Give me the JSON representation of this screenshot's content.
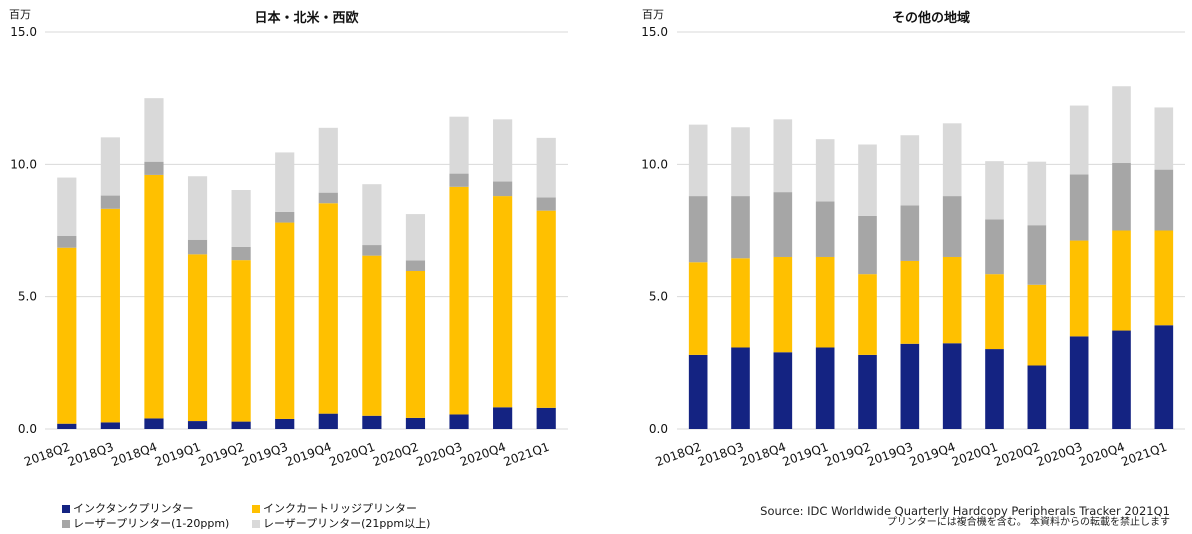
{
  "unit_label": "百万",
  "colors": {
    "ink_tank": "#142382",
    "ink_cartridge": "#FFC000",
    "laser_1_20ppm": "#A6A6A6",
    "laser_21ppm_plus": "#D9D9D9"
  },
  "legend": [
    {
      "label": "インクタンクプリンター",
      "color": "#142382"
    },
    {
      "label": "インクカートリッジプリンター",
      "color": "#FFC000"
    },
    {
      "label": "レーザープリンター(1-20ppm)",
      "color": "#A6A6A6"
    },
    {
      "label": "レーザープリンター(21ppm以上)",
      "color": "#D9D9D9"
    }
  ],
  "source": {
    "text": "Source: IDC Worldwide Quarterly Hardcopy Peripherals Tracker 2021Q1",
    "note": "プリンターには複合機を含む。 本資料からの転載を禁止します"
  },
  "chart_data": [
    {
      "type": "bar",
      "stacked": true,
      "title": "日本・北米・西欧",
      "ylabel": "百万",
      "ylim": [
        0,
        15
      ],
      "yticks": [
        0,
        5,
        10,
        15
      ],
      "grid": true,
      "categories": [
        "2018Q2",
        "2018Q3",
        "2018Q4",
        "2019Q1",
        "2019Q2",
        "2019Q3",
        "2019Q4",
        "2020Q1",
        "2020Q2",
        "2020Q3",
        "2020Q4",
        "2021Q1"
      ],
      "series": [
        {
          "name": "インクタンクプリンター",
          "color": "#142382",
          "values": [
            0.2,
            0.25,
            0.4,
            0.3,
            0.28,
            0.38,
            0.58,
            0.5,
            0.42,
            0.55,
            0.82,
            0.8
          ]
        },
        {
          "name": "インクカートリッジプリンター",
          "color": "#FFC000",
          "values": [
            6.65,
            8.07,
            9.2,
            6.3,
            6.1,
            7.42,
            7.95,
            6.05,
            5.55,
            8.6,
            7.98,
            7.45
          ]
        },
        {
          "name": "レーザープリンター(1-20ppm)",
          "color": "#A6A6A6",
          "values": [
            0.45,
            0.5,
            0.5,
            0.55,
            0.5,
            0.4,
            0.4,
            0.4,
            0.4,
            0.5,
            0.55,
            0.5
          ]
        },
        {
          "name": "レーザープリンター(21ppm以上)",
          "color": "#D9D9D9",
          "values": [
            2.2,
            2.2,
            2.4,
            2.4,
            2.15,
            2.25,
            2.45,
            2.3,
            1.75,
            2.15,
            2.35,
            2.25
          ]
        }
      ]
    },
    {
      "type": "bar",
      "stacked": true,
      "title": "その他の地域",
      "ylabel": "百万",
      "ylim": [
        0,
        15
      ],
      "yticks": [
        0,
        5,
        10,
        15
      ],
      "grid": true,
      "categories": [
        "2018Q2",
        "2018Q3",
        "2018Q4",
        "2019Q1",
        "2019Q2",
        "2019Q3",
        "2019Q4",
        "2020Q1",
        "2020Q2",
        "2020Q3",
        "2020Q4",
        "2021Q1"
      ],
      "series": [
        {
          "name": "インクタンクプリンター",
          "color": "#142382",
          "values": [
            2.8,
            3.08,
            2.9,
            3.08,
            2.8,
            3.22,
            3.24,
            3.02,
            2.4,
            3.5,
            3.72,
            3.92
          ]
        },
        {
          "name": "インクカートリッジプリンター",
          "color": "#FFC000",
          "values": [
            3.5,
            3.37,
            3.6,
            3.42,
            3.05,
            3.13,
            3.26,
            2.83,
            3.05,
            3.62,
            3.78,
            3.58
          ]
        },
        {
          "name": "レーザープリンター(1-20ppm)",
          "color": "#A6A6A6",
          "values": [
            2.5,
            2.35,
            2.45,
            2.1,
            2.2,
            2.1,
            2.3,
            2.07,
            2.25,
            2.5,
            2.55,
            2.3
          ]
        },
        {
          "name": "レーザープリンター(21ppm以上)",
          "color": "#D9D9D9",
          "values": [
            2.7,
            2.6,
            2.75,
            2.35,
            2.7,
            2.65,
            2.75,
            2.2,
            2.4,
            2.6,
            2.9,
            2.35
          ]
        }
      ]
    }
  ]
}
